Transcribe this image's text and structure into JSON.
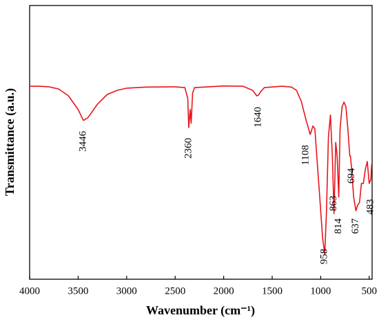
{
  "chart_data": {
    "type": "line",
    "x_label": "Wavenumber (cm⁻¹)",
    "y_label": "Transmittance (a.u.)",
    "xlim": [
      4000,
      470
    ],
    "ylim": [
      0,
      100
    ],
    "xticks": [
      4000,
      3500,
      3000,
      2500,
      2000,
      1500,
      1000,
      500
    ],
    "series": [
      {
        "color": "#e8141b",
        "x": [
          4000,
          3900,
          3800,
          3700,
          3600,
          3500,
          3446,
          3400,
          3300,
          3200,
          3100,
          3000,
          2800,
          2500,
          2400,
          2370,
          2360,
          2345,
          2335,
          2320,
          2300,
          2000,
          1800,
          1700,
          1660,
          1640,
          1620,
          1580,
          1400,
          1300,
          1250,
          1200,
          1150,
          1108,
          1080,
          1060,
          1040,
          1010,
          980,
          958,
          940,
          920,
          900,
          880,
          863,
          845,
          830,
          814,
          800,
          780,
          760,
          740,
          720,
          700,
          694,
          680,
          660,
          637,
          620,
          600,
          580,
          560,
          540,
          520,
          500,
          483,
          475
        ],
        "values": [
          70.5,
          70.5,
          70.3,
          69.5,
          67,
          62,
          58,
          59,
          64,
          67.5,
          69,
          69.8,
          70.2,
          70.3,
          70,
          66,
          55.4,
          62,
          57,
          68,
          70,
          70.6,
          70.5,
          69,
          67,
          67.3,
          68.5,
          70,
          70.5,
          70.2,
          69,
          65,
          58,
          52.9,
          56,
          55,
          45,
          30,
          15,
          9.3,
          25,
          52,
          60,
          45,
          24,
          50,
          45,
          30,
          55,
          63,
          64.7,
          63,
          55,
          45,
          45,
          40,
          30,
          25,
          27,
          28,
          35,
          35,
          40,
          43,
          35,
          36.5,
          42
        ]
      }
    ],
    "annotations": [
      3446,
      2360,
      1640,
      1108,
      958,
      863,
      814,
      637,
      694,
      483
    ]
  }
}
